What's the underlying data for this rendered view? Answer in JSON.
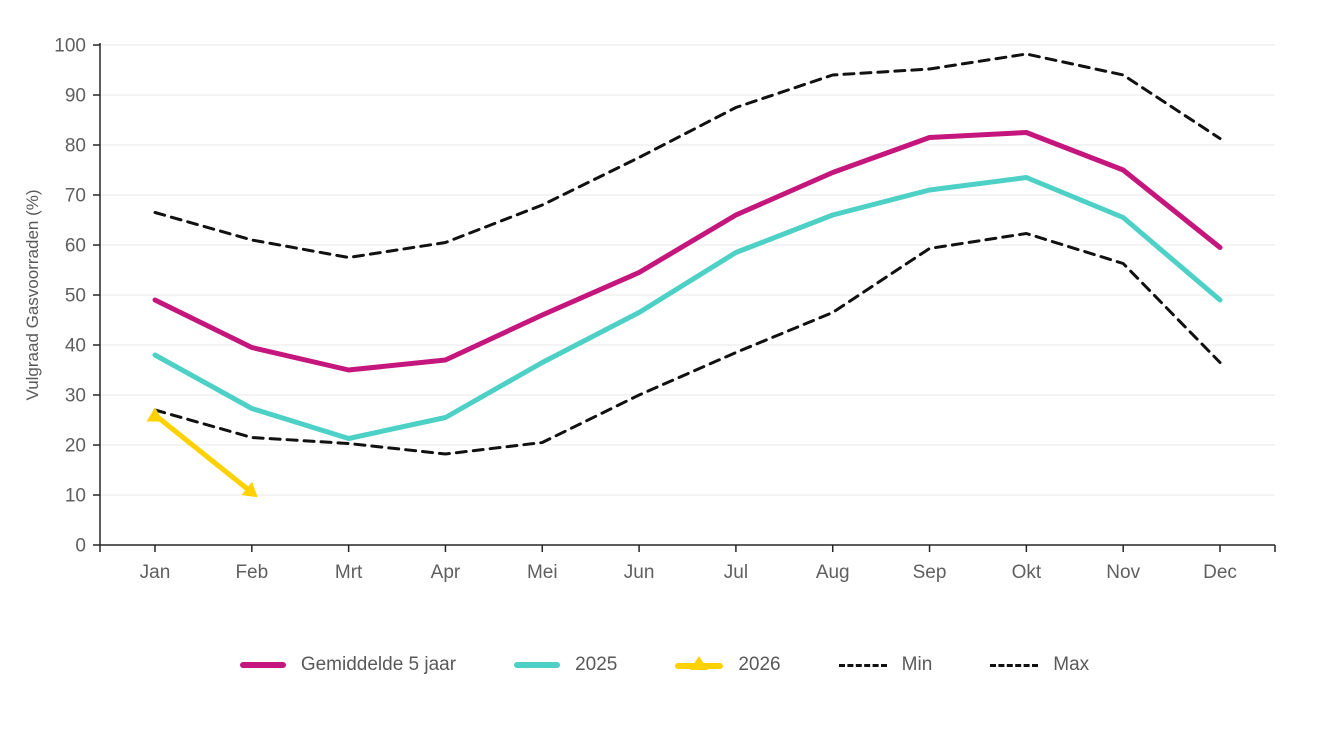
{
  "chart_data": {
    "type": "line",
    "title": "",
    "xlabel": "",
    "ylabel": "Vulgraad Gasvoorraden (%)",
    "ylim": [
      0,
      100
    ],
    "ytick_step": 10,
    "y_ticks": [
      "0",
      "10",
      "20",
      "30",
      "40",
      "50",
      "60",
      "70",
      "80",
      "90",
      "100"
    ],
    "grid": "horizontal",
    "legend_position": "bottom-center",
    "categories": [
      "Jan",
      "Feb",
      "Mrt",
      "Apr",
      "Mei",
      "Jun",
      "Jul",
      "Aug",
      "Sep",
      "Okt",
      "Nov",
      "Dec"
    ],
    "series": [
      {
        "name": "Gemiddelde 5 jaar",
        "color": "#c4167d",
        "style": "solid",
        "width": 5,
        "values": [
          49,
          39.5,
          35,
          37,
          46,
          54.5,
          66,
          74.5,
          81.5,
          82.5,
          75,
          59.5
        ]
      },
      {
        "name": "2025",
        "color": "#4dd0c5",
        "style": "solid",
        "width": 5,
        "values": [
          38,
          27.3,
          21.3,
          25.5,
          36.5,
          46.5,
          58.5,
          66,
          71,
          73.5,
          65.5,
          49
        ]
      },
      {
        "name": "2026",
        "color": "#ffd100",
        "style": "solid",
        "width": 5,
        "marker": "triangle",
        "values": [
          26,
          10.5,
          null,
          null,
          null,
          null,
          null,
          null,
          null,
          null,
          null,
          null
        ]
      },
      {
        "name": "Min",
        "color": "#111111",
        "style": "dashed",
        "width": 3,
        "values": [
          27,
          21.5,
          20.3,
          18.2,
          20.5,
          30,
          38.5,
          46.5,
          59.3,
          62.3,
          56.3,
          36.5
        ]
      },
      {
        "name": "Max",
        "color": "#111111",
        "style": "dashed",
        "width": 3,
        "values": [
          66.5,
          61,
          57.5,
          60.5,
          68,
          77.5,
          87.5,
          94,
          95.2,
          98.2,
          94,
          81.3
        ]
      }
    ]
  },
  "colors": {
    "axis": "#262626",
    "grid": "#e9e9e9",
    "tick_label": "#5f5f5f",
    "axis_title": "#595959",
    "legend_text": "#595959"
  }
}
